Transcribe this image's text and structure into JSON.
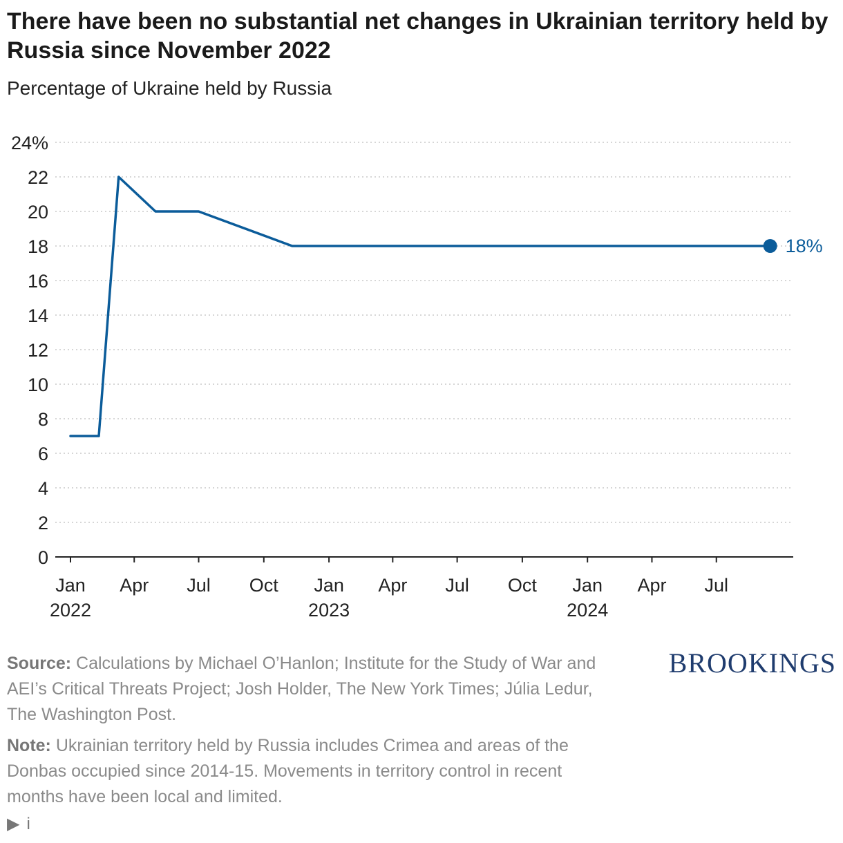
{
  "title": "There have been no substantial net changes in Ukrainian territory held by Russia since November 2022",
  "subtitle": "Percentage of Ukraine held by Russia",
  "source": {
    "label": "Source:",
    "text": "Calculations by Michael O’Hanlon; Institute for the Study of War and AEI’s Critical Threats Project; Josh Holder, The New York Times; Júlia Ledur, The Washington Post."
  },
  "note": {
    "label": "Note:",
    "text": "Ukrainian territory held by Russia includes Crimea and areas of the Donbas occupied since 2014-15. Movements in territory control in recent months have been local and limited."
  },
  "logo_text": "BROOKINGS",
  "info": {
    "triangle": "▶",
    "icon": "i"
  },
  "colors": {
    "line": "#0b5c9a",
    "grid": "#c8c8c8",
    "logo": "#1f3c6e"
  },
  "chart_data": {
    "type": "line",
    "title": "There have been no substantial net changes in Ukrainian territory held by Russia since November 2022",
    "subtitle": "Percentage of Ukraine held by Russia",
    "xlabel": "",
    "ylabel": "",
    "ylim": [
      0,
      24
    ],
    "yticks": [
      "0",
      "2",
      "4",
      "6",
      "8",
      "10",
      "12",
      "14",
      "16",
      "18",
      "20",
      "22",
      "24%"
    ],
    "xlim": [
      "2022-01-01",
      "2024-09-30"
    ],
    "xticks": [
      {
        "date": "2022-01-01",
        "label": "Jan",
        "year": "2022"
      },
      {
        "date": "2022-04-01",
        "label": "Apr",
        "year": ""
      },
      {
        "date": "2022-07-01",
        "label": "Jul",
        "year": ""
      },
      {
        "date": "2022-10-01",
        "label": "Oct",
        "year": ""
      },
      {
        "date": "2023-01-01",
        "label": "Jan",
        "year": "2023"
      },
      {
        "date": "2023-04-01",
        "label": "Apr",
        "year": ""
      },
      {
        "date": "2023-07-01",
        "label": "Jul",
        "year": ""
      },
      {
        "date": "2023-10-01",
        "label": "Oct",
        "year": ""
      },
      {
        "date": "2024-01-01",
        "label": "Jan",
        "year": "2024"
      },
      {
        "date": "2024-04-01",
        "label": "Apr",
        "year": ""
      },
      {
        "date": "2024-07-01",
        "label": "Jul",
        "year": ""
      }
    ],
    "grid": true,
    "series": [
      {
        "points": [
          {
            "x": "2022-01-01",
            "y": 7
          },
          {
            "x": "2022-02-10",
            "y": 7
          },
          {
            "x": "2022-03-10",
            "y": 22
          },
          {
            "x": "2022-05-01",
            "y": 20
          },
          {
            "x": "2022-07-01",
            "y": 20
          },
          {
            "x": "2022-11-10",
            "y": 18
          },
          {
            "x": "2024-09-15",
            "y": 18
          }
        ],
        "end_label": "18%"
      }
    ]
  }
}
